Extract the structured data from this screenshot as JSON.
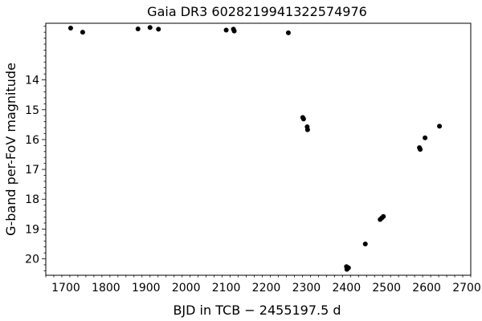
{
  "chart_data": {
    "type": "scatter",
    "title": "Gaia DR3 6028219941322574976",
    "xlabel": "BJD in TCB − 2455197.5 d",
    "ylabel": "G-band per-FoV magnitude",
    "xlim": [
      1650,
      2710
    ],
    "ylim": [
      20.55,
      12.1
    ],
    "y_inverted": true,
    "grid": false,
    "xticks": [
      1700,
      1800,
      1900,
      2000,
      2100,
      2200,
      2300,
      2400,
      2500,
      2600,
      2700
    ],
    "yticks": [
      14,
      15,
      16,
      17,
      18,
      19,
      20
    ],
    "marker_color": "#000000",
    "points": [
      {
        "x": 1712,
        "y": 12.26
      },
      {
        "x": 1742,
        "y": 12.4
      },
      {
        "x": 1880,
        "y": 12.29
      },
      {
        "x": 1910,
        "y": 12.24
      },
      {
        "x": 1931,
        "y": 12.3
      },
      {
        "x": 2100,
        "y": 12.33
      },
      {
        "x": 2118,
        "y": 12.3
      },
      {
        "x": 2120,
        "y": 12.36
      },
      {
        "x": 2255,
        "y": 12.42
      },
      {
        "x": 2291,
        "y": 15.26
      },
      {
        "x": 2293,
        "y": 15.31
      },
      {
        "x": 2302,
        "y": 15.57
      },
      {
        "x": 2303,
        "y": 15.67
      },
      {
        "x": 2400,
        "y": 20.26
      },
      {
        "x": 2401,
        "y": 20.35
      },
      {
        "x": 2405,
        "y": 20.3
      },
      {
        "x": 2447,
        "y": 19.5
      },
      {
        "x": 2484,
        "y": 18.68
      },
      {
        "x": 2488,
        "y": 18.63
      },
      {
        "x": 2492,
        "y": 18.58
      },
      {
        "x": 2582,
        "y": 16.27
      },
      {
        "x": 2584,
        "y": 16.33
      },
      {
        "x": 2596,
        "y": 15.94
      },
      {
        "x": 2632,
        "y": 15.55
      }
    ]
  }
}
